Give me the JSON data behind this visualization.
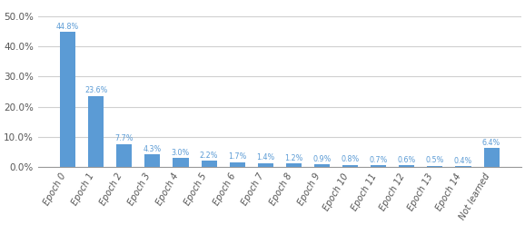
{
  "categories": [
    "Epoch 0",
    "Epoch 1",
    "Epoch 2",
    "Epoch 3",
    "Epoch 4",
    "Epoch 5",
    "Epoch 6",
    "Epoch 7",
    "Epoch 8",
    "Epoch 9",
    "Epoch 10",
    "Epoch 11",
    "Epoch 12",
    "Epoch 13",
    "Epoch 14",
    "Not learned"
  ],
  "values": [
    44.8,
    23.6,
    7.7,
    4.3,
    3.0,
    2.2,
    1.7,
    1.4,
    1.2,
    0.9,
    0.8,
    0.7,
    0.6,
    0.5,
    0.4,
    6.4
  ],
  "labels": [
    "44.8%",
    "23.6%",
    "7.7%",
    "4.3%",
    "3.0%",
    "2.2%",
    "1.7%",
    "1.4%",
    "1.2%",
    "0.9%",
    "0.8%",
    "0.7%",
    "0.6%",
    "0.5%",
    "0.4%",
    "6.4%"
  ],
  "bar_color": "#5B9BD5",
  "label_color": "#5B9BD5",
  "background_color": "#ffffff",
  "grid_color": "#d0d0d0",
  "yticks": [
    0.0,
    10.0,
    20.0,
    30.0,
    40.0,
    50.0
  ],
  "ytick_labels": [
    "0.0%",
    "10.0%",
    "20.0%",
    "30.0%",
    "40.0%",
    "50.0%"
  ],
  "ylim": [
    0,
    54
  ]
}
